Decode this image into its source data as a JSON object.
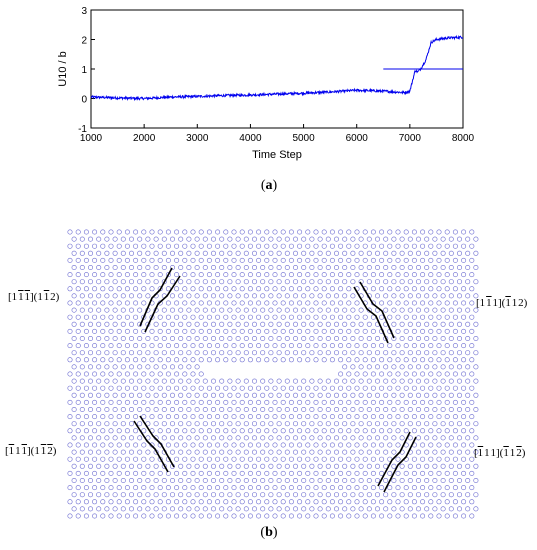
{
  "chart_data": [
    {
      "type": "line",
      "xlabel": "Time Step",
      "ylabel": "U10 / b",
      "xlim": [
        1000,
        8000
      ],
      "ylim": [
        -1,
        3
      ],
      "x_ticks": [
        "1000",
        "2000",
        "3000",
        "4000",
        "5000",
        "6000",
        "7000",
        "8000"
      ],
      "y_ticks": [
        "-1",
        "0",
        "1",
        "2",
        "3"
      ],
      "grid": false,
      "series": [
        {
          "color": "#0000ee",
          "x": [
            1000,
            1500,
            2000,
            2500,
            3000,
            3500,
            4000,
            4500,
            5000,
            5500,
            6000,
            6500,
            6900,
            7000,
            7050,
            7100,
            7150,
            7200,
            7300,
            7400,
            7500,
            7700,
            8000
          ],
          "y": [
            0.05,
            0.02,
            0.0,
            0.05,
            0.07,
            0.1,
            0.12,
            0.15,
            0.18,
            0.22,
            0.28,
            0.25,
            0.2,
            0.25,
            0.6,
            0.95,
            0.9,
            1.0,
            1.3,
            1.9,
            2.0,
            2.05,
            2.08
          ],
          "noise": 0.04
        },
        {
          "color": "#0000ee",
          "x": [
            6500,
            8000
          ],
          "y": [
            1.0,
            1.0
          ]
        }
      ],
      "caption": "(a)"
    },
    {
      "type": "scatter",
      "description_style": "atomic lattice",
      "point_color": "#6a6ad0",
      "annotations": [
        "[1 1 1](1 1 2)",
        "[1 1 1](1 1 2)",
        "[1 1 1](1 1 2)",
        "[1 1 1](1 1 2)"
      ],
      "overbar_flags": [
        [
          false,
          true,
          true,
          false,
          true,
          false
        ],
        [
          false,
          true,
          false,
          true,
          false,
          false
        ],
        [
          true,
          false,
          true,
          false,
          true,
          true
        ],
        [
          true,
          false,
          false,
          true,
          false,
          true
        ]
      ],
      "caption": "(b)"
    }
  ],
  "captions": {
    "a_letter": "a",
    "b_letter": "b"
  }
}
